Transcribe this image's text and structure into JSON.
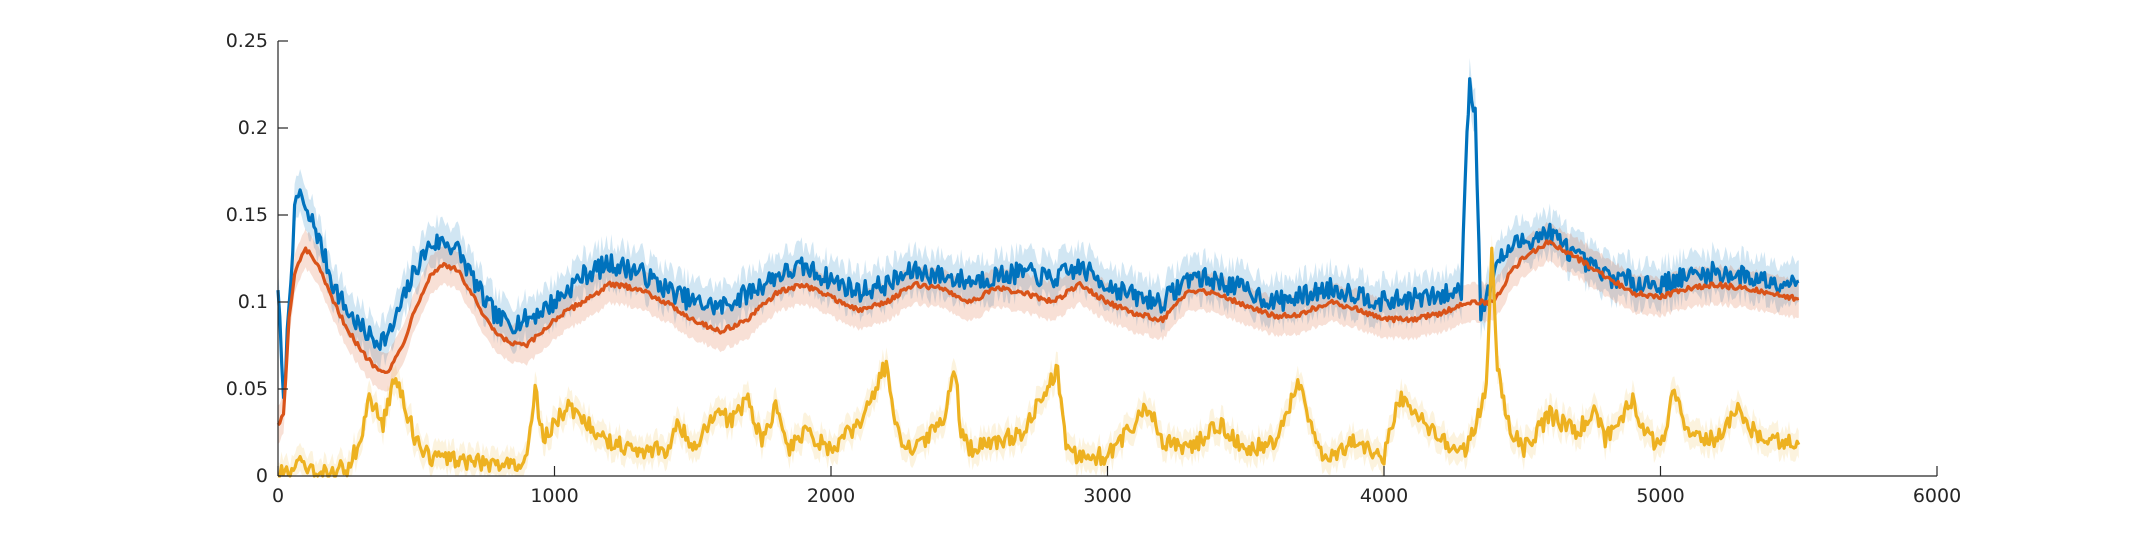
{
  "chart_data": {
    "type": "line",
    "title": "",
    "xlabel": "",
    "ylabel": "",
    "xlim": [
      0,
      6000
    ],
    "ylim": [
      0,
      0.25
    ],
    "xticks": [
      0,
      1000,
      2000,
      3000,
      4000,
      5000,
      6000
    ],
    "yticks": [
      0,
      0.05,
      0.1,
      0.15,
      0.2,
      0.25
    ],
    "xtick_labels": [
      "0",
      "1000",
      "2000",
      "3000",
      "4000",
      "5000",
      "6000"
    ],
    "ytick_labels": [
      "0",
      "0.05",
      "0.1",
      "0.15",
      "0.2",
      "0.25"
    ],
    "grid": false,
    "legend": "none",
    "colors": {
      "blue": "#0072BD",
      "orange": "#D95319",
      "yellow": "#EDB120"
    },
    "series": [
      {
        "color": "#0072BD",
        "band_alpha": 0.18,
        "x": [
          0,
          20,
          40,
          60,
          80,
          100,
          130,
          160,
          200,
          250,
          300,
          350,
          400,
          450,
          500,
          550,
          600,
          650,
          700,
          750,
          800,
          850,
          900,
          950,
          1000,
          1100,
          1200,
          1300,
          1400,
          1500,
          1600,
          1700,
          1800,
          1900,
          2000,
          2100,
          2200,
          2300,
          2400,
          2500,
          2600,
          2700,
          2800,
          2900,
          3000,
          3100,
          3200,
          3300,
          3400,
          3500,
          3600,
          3700,
          3800,
          3900,
          4000,
          4100,
          4200,
          4280,
          4300,
          4310,
          4330,
          4350,
          4370,
          4400,
          4450,
          4500,
          4600,
          4700,
          4800,
          4900,
          5000,
          5100,
          5200,
          5300,
          5400,
          5500
        ],
        "y": [
          0.11,
          0.04,
          0.1,
          0.15,
          0.165,
          0.15,
          0.145,
          0.13,
          0.11,
          0.095,
          0.085,
          0.078,
          0.08,
          0.1,
          0.12,
          0.133,
          0.135,
          0.13,
          0.115,
          0.1,
          0.09,
          0.088,
          0.09,
          0.095,
          0.1,
          0.115,
          0.122,
          0.118,
          0.108,
          0.1,
          0.097,
          0.105,
          0.115,
          0.12,
          0.113,
          0.106,
          0.11,
          0.118,
          0.115,
          0.112,
          0.115,
          0.117,
          0.113,
          0.12,
          0.11,
          0.103,
          0.1,
          0.115,
          0.112,
          0.107,
          0.1,
          0.103,
          0.108,
          0.105,
          0.1,
          0.102,
          0.103,
          0.107,
          0.2,
          0.225,
          0.21,
          0.095,
          0.1,
          0.12,
          0.13,
          0.135,
          0.14,
          0.125,
          0.115,
          0.112,
          0.11,
          0.115,
          0.117,
          0.115,
          0.112,
          0.112
        ]
      },
      {
        "color": "#D95319",
        "band_alpha": 0.18,
        "x": [
          0,
          20,
          40,
          60,
          80,
          100,
          130,
          160,
          200,
          250,
          300,
          350,
          400,
          450,
          500,
          550,
          600,
          650,
          700,
          750,
          800,
          850,
          900,
          950,
          1000,
          1100,
          1200,
          1300,
          1400,
          1500,
          1600,
          1700,
          1800,
          1900,
          2000,
          2100,
          2200,
          2300,
          2400,
          2500,
          2600,
          2700,
          2800,
          2900,
          3000,
          3100,
          3200,
          3300,
          3400,
          3500,
          3600,
          3700,
          3800,
          3900,
          4000,
          4100,
          4200,
          4300,
          4400,
          4450,
          4500,
          4600,
          4700,
          4800,
          4900,
          5000,
          5100,
          5200,
          5300,
          5400,
          5500
        ],
        "y": [
          0.03,
          0.035,
          0.09,
          0.115,
          0.125,
          0.13,
          0.125,
          0.115,
          0.1,
          0.085,
          0.072,
          0.063,
          0.06,
          0.075,
          0.098,
          0.115,
          0.122,
          0.118,
          0.105,
          0.09,
          0.08,
          0.076,
          0.075,
          0.082,
          0.09,
          0.1,
          0.11,
          0.108,
          0.1,
          0.09,
          0.083,
          0.09,
          0.105,
          0.11,
          0.103,
          0.095,
          0.1,
          0.11,
          0.108,
          0.1,
          0.108,
          0.105,
          0.1,
          0.11,
          0.1,
          0.093,
          0.09,
          0.107,
          0.105,
          0.098,
          0.092,
          0.093,
          0.1,
          0.096,
          0.09,
          0.09,
          0.093,
          0.1,
          0.1,
          0.115,
          0.125,
          0.135,
          0.125,
          0.115,
          0.105,
          0.103,
          0.108,
          0.11,
          0.108,
          0.105,
          0.102
        ]
      },
      {
        "color": "#EDB120",
        "band_alpha": 0.15,
        "x": [
          0,
          50,
          80,
          100,
          150,
          250,
          300,
          330,
          380,
          420,
          450,
          500,
          550,
          600,
          700,
          800,
          900,
          930,
          960,
          1000,
          1050,
          1100,
          1150,
          1200,
          1300,
          1400,
          1450,
          1500,
          1600,
          1630,
          1700,
          1750,
          1800,
          1850,
          1900,
          2000,
          2100,
          2150,
          2200,
          2220,
          2250,
          2300,
          2400,
          2450,
          2470,
          2500,
          2600,
          2700,
          2790,
          2820,
          2850,
          2900,
          3000,
          3100,
          3150,
          3200,
          3300,
          3400,
          3500,
          3600,
          3700,
          3720,
          3760,
          3800,
          3900,
          4000,
          4050,
          4100,
          4150,
          4200,
          4300,
          4370,
          4390,
          4410,
          4450,
          4500,
          4600,
          4700,
          4760,
          4800,
          4900,
          4930,
          5000,
          5050,
          5100,
          5200,
          5280,
          5300,
          5400,
          5500
        ],
        "y": [
          0.002,
          0.001,
          0.008,
          0.002,
          0.001,
          0.005,
          0.02,
          0.045,
          0.03,
          0.055,
          0.045,
          0.02,
          0.01,
          0.01,
          0.008,
          0.007,
          0.008,
          0.05,
          0.02,
          0.03,
          0.04,
          0.035,
          0.025,
          0.02,
          0.015,
          0.015,
          0.03,
          0.015,
          0.04,
          0.03,
          0.045,
          0.02,
          0.04,
          0.015,
          0.025,
          0.015,
          0.03,
          0.045,
          0.065,
          0.04,
          0.02,
          0.015,
          0.03,
          0.06,
          0.025,
          0.015,
          0.02,
          0.025,
          0.055,
          0.06,
          0.02,
          0.01,
          0.012,
          0.03,
          0.04,
          0.02,
          0.015,
          0.03,
          0.015,
          0.02,
          0.055,
          0.04,
          0.015,
          0.01,
          0.02,
          0.01,
          0.045,
          0.04,
          0.03,
          0.02,
          0.015,
          0.05,
          0.13,
          0.065,
          0.03,
          0.015,
          0.035,
          0.025,
          0.04,
          0.02,
          0.045,
          0.03,
          0.015,
          0.05,
          0.025,
          0.02,
          0.04,
          0.03,
          0.02,
          0.018
        ]
      }
    ]
  }
}
